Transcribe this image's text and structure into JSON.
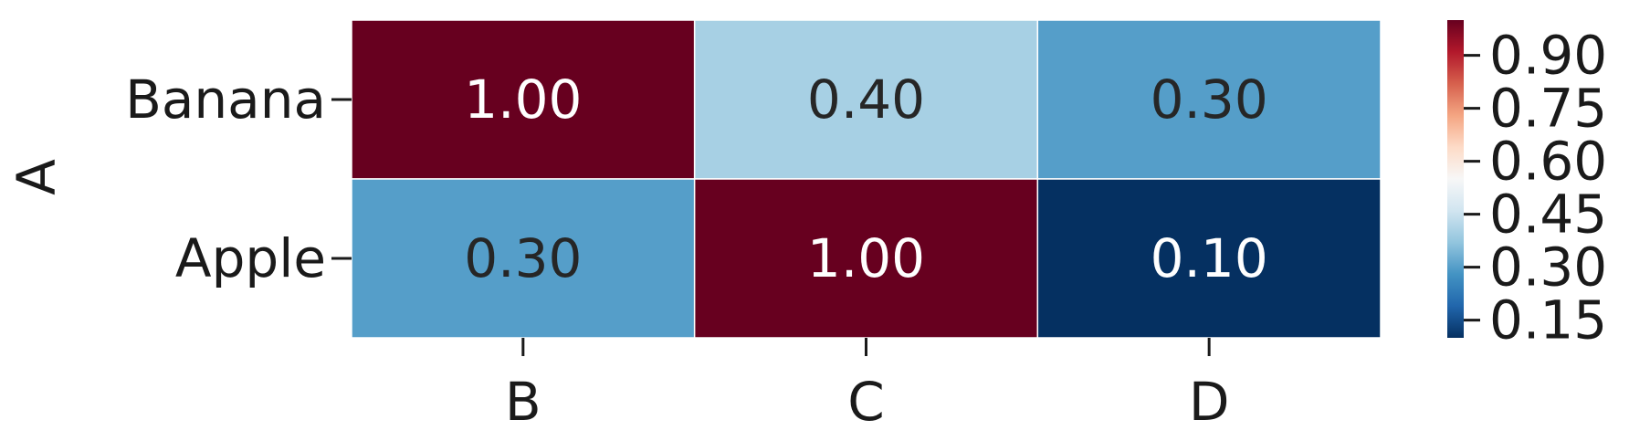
{
  "chart_data": {
    "type": "heatmap",
    "title": "",
    "xlabel": "",
    "ylabel": "A",
    "x_categories": [
      "B",
      "C",
      "D"
    ],
    "y_categories": [
      "Banana",
      "Apple"
    ],
    "values": [
      [
        1.0,
        0.4,
        0.3
      ],
      [
        0.3,
        1.0,
        0.1
      ]
    ],
    "value_labels": [
      [
        "1.00",
        "0.40",
        "0.30"
      ],
      [
        "0.30",
        "1.00",
        "0.10"
      ]
    ],
    "colormap": "RdBu_r",
    "color_range": [
      0.1,
      1.0
    ],
    "colorbar_ticks": [
      0.15,
      0.3,
      0.45,
      0.6,
      0.75,
      0.9
    ],
    "colorbar_tick_labels": [
      "0.15",
      "0.30",
      "0.45",
      "0.60",
      "0.75",
      "0.90"
    ],
    "grid": false,
    "legend": "colorbar-right"
  }
}
